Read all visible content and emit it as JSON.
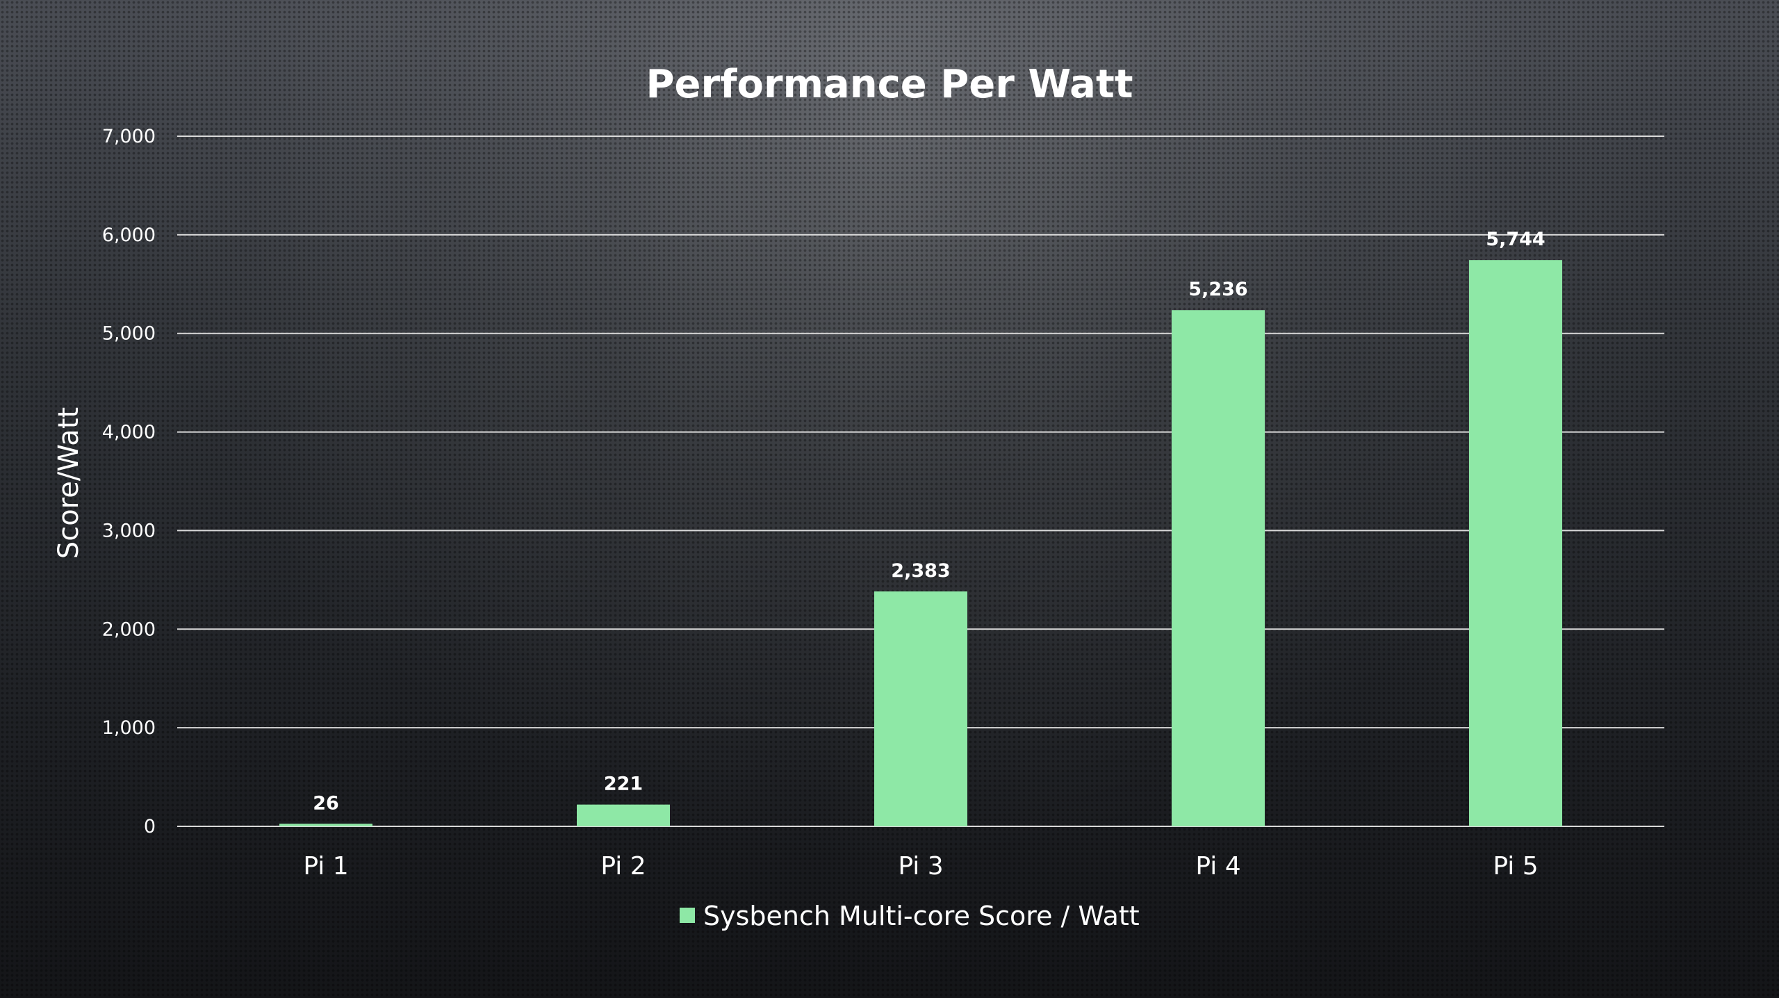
{
  "chart_data": {
    "type": "bar",
    "title": "Performance Per Watt",
    "xlabel": "",
    "ylabel": "Score/Watt",
    "categories": [
      "Pi 1",
      "Pi 2",
      "Pi 3",
      "Pi 4",
      "Pi 5"
    ],
    "series": [
      {
        "name": "Sysbench Multi-core Score / Watt",
        "values": [
          26,
          221,
          2383,
          5236,
          5744
        ],
        "data_labels": [
          "26",
          "221",
          "2,383",
          "5,236",
          "5,744"
        ],
        "color": "#8ee8a6"
      }
    ],
    "ylim": [
      0,
      7000
    ],
    "yticks": [
      0,
      1000,
      2000,
      3000,
      4000,
      5000,
      6000,
      7000
    ],
    "ytick_labels": [
      "0",
      "1,000",
      "2,000",
      "3,000",
      "4,000",
      "5,000",
      "6,000",
      "7,000"
    ],
    "grid": true,
    "legend_position": "bottom-center"
  }
}
